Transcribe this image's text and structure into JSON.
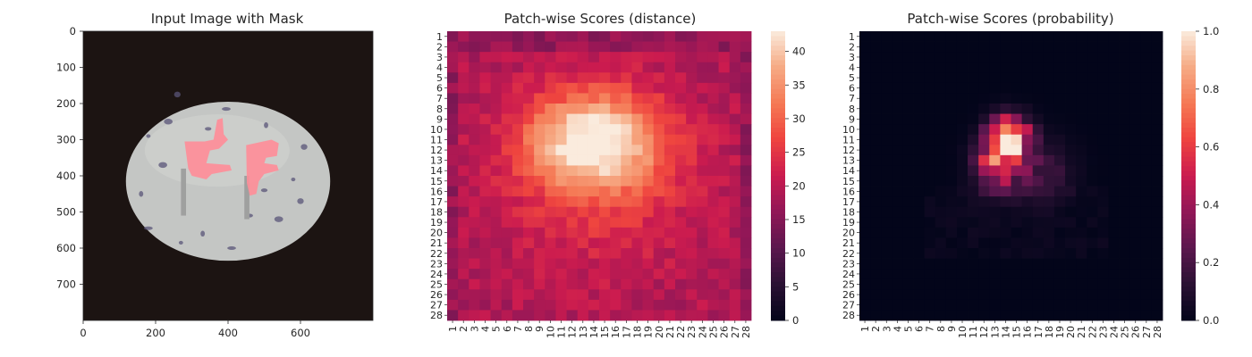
{
  "chart_data": [
    {
      "type": "image",
      "title": "Input Image with Mask",
      "xticks": [
        0,
        200,
        400,
        600
      ],
      "yticks": [
        0,
        100,
        200,
        300,
        400,
        500,
        600,
        700
      ],
      "xlim": [
        0,
        800
      ],
      "ylim": [
        0,
        800
      ],
      "colors": {
        "background": "#1c1412",
        "egg": "#c4c6c4",
        "mask": "#ff8d98",
        "speckle": "#5a5478"
      }
    },
    {
      "type": "heatmap",
      "title": "Patch-wise Scores (distance)",
      "xtick_labels": [
        "1",
        "2",
        "3",
        "4",
        "5",
        "6",
        "7",
        "8",
        "9",
        "10",
        "11",
        "12",
        "13",
        "14",
        "15",
        "16",
        "17",
        "18",
        "19",
        "20",
        "21",
        "22",
        "23",
        "24",
        "25",
        "26",
        "27",
        "28"
      ],
      "ytick_labels": [
        "1",
        "2",
        "3",
        "4",
        "5",
        "6",
        "7",
        "8",
        "9",
        "10",
        "11",
        "12",
        "13",
        "14",
        "15",
        "16",
        "17",
        "18",
        "19",
        "20",
        "21",
        "22",
        "23",
        "24",
        "25",
        "26",
        "27",
        "28"
      ],
      "colorbar_ticks": [
        0,
        5,
        10,
        15,
        20,
        25,
        30,
        35,
        40
      ],
      "vmin": 0,
      "vmax": 43,
      "colormap": "rocket",
      "peak_center": [
        13,
        10
      ],
      "peak_value": 43,
      "baseline_value": 19
    },
    {
      "type": "heatmap",
      "title": "Patch-wise Scores (probability)",
      "xtick_labels": [
        "1",
        "2",
        "3",
        "4",
        "5",
        "6",
        "7",
        "8",
        "9",
        "10",
        "11",
        "12",
        "13",
        "14",
        "15",
        "16",
        "17",
        "18",
        "19",
        "20",
        "21",
        "22",
        "23",
        "24",
        "25",
        "26",
        "27",
        "28"
      ],
      "ytick_labels": [
        "1",
        "2",
        "3",
        "4",
        "5",
        "6",
        "7",
        "8",
        "9",
        "10",
        "11",
        "12",
        "13",
        "14",
        "15",
        "16",
        "17",
        "18",
        "19",
        "20",
        "21",
        "22",
        "23",
        "24",
        "25",
        "26",
        "27",
        "28"
      ],
      "colorbar_ticks": [
        "0.0",
        "0.2",
        "0.4",
        "0.6",
        "0.8",
        "1.0"
      ],
      "vmin": 0,
      "vmax": 1,
      "colormap": "rocket",
      "peak_value": 1.0
    }
  ]
}
